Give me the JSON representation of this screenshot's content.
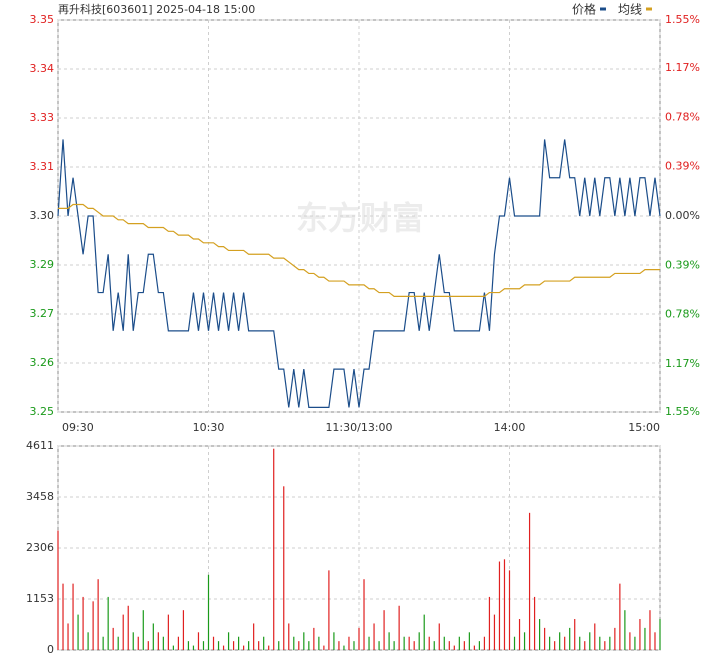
{
  "chart_data": [
    {
      "type": "line",
      "title": "再升科技[603601] 2025-04-18 15:00",
      "watermark": "东方财富",
      "legend": "top-right",
      "grid": true,
      "up_color": "#e02020",
      "down_color": "#1a9a1a",
      "flat_color": "#333333",
      "x": [
        0,
        2,
        4,
        6,
        8,
        10,
        12,
        14,
        16,
        18,
        20,
        22,
        24,
        26,
        28,
        30,
        32,
        34,
        36,
        38,
        40,
        42,
        44,
        46,
        48,
        50,
        52,
        54,
        56,
        58,
        60,
        62,
        64,
        66,
        68,
        70,
        72,
        74,
        76,
        78,
        80,
        82,
        84,
        86,
        88,
        90,
        92,
        94,
        96,
        98,
        100,
        102,
        104,
        106,
        108,
        110,
        112,
        114,
        116,
        118,
        120,
        122,
        124,
        126,
        128,
        130,
        132,
        134,
        136,
        138,
        140,
        142,
        144,
        146,
        148,
        150,
        152,
        154,
        156,
        158,
        160,
        162,
        164,
        166,
        168,
        170,
        172,
        174,
        176,
        178,
        180,
        182,
        184,
        186,
        188,
        190,
        192,
        194,
        196,
        198,
        200,
        202,
        204,
        206,
        208,
        210,
        212,
        214,
        216,
        218,
        220,
        222,
        224,
        226,
        228,
        230,
        232,
        234,
        236,
        238,
        240
      ],
      "xlim": [
        0,
        240
      ],
      "xticks": [
        {
          "value": 0,
          "label": "09:30"
        },
        {
          "value": 60,
          "label": "10:30"
        },
        {
          "value": 120,
          "label": "11:30/13:00"
        },
        {
          "value": 180,
          "label": "14:00"
        },
        {
          "value": 240,
          "label": "15:00"
        }
      ],
      "ylim": [
        3.2488,
        3.3512
      ],
      "yticks": [
        {
          "value": 3.3512,
          "label": "3.35"
        },
        {
          "value": 3.3384,
          "label": "3.34"
        },
        {
          "value": 3.3256,
          "label": "3.33"
        },
        {
          "value": 3.3128,
          "label": "3.31"
        },
        {
          "value": 3.3,
          "label": "3.30"
        },
        {
          "value": 3.2872,
          "label": "3.29"
        },
        {
          "value": 3.2744,
          "label": "3.27"
        },
        {
          "value": 3.2616,
          "label": "3.26"
        },
        {
          "value": 3.2488,
          "label": "3.25"
        }
      ],
      "y2lim": [
        -1.55,
        1.55
      ],
      "y2ticks": [
        {
          "value": 1.55,
          "label": "1.55%"
        },
        {
          "value": 1.17,
          "label": "1.17%"
        },
        {
          "value": 0.78,
          "label": "0.78%"
        },
        {
          "value": 0.39,
          "label": "0.39%"
        },
        {
          "value": 0,
          "label": "0.00%"
        },
        {
          "value": -0.39,
          "label": "0.39%"
        },
        {
          "value": -0.78,
          "label": "0.78%"
        },
        {
          "value": -1.17,
          "label": "1.17%"
        },
        {
          "value": -1.55,
          "label": "1.55%"
        }
      ],
      "series": [
        {
          "name": "价格",
          "color": "#1b4d8a",
          "values": [
            3.3,
            3.32,
            3.3,
            3.31,
            3.3,
            3.29,
            3.3,
            3.3,
            3.28,
            3.28,
            3.29,
            3.27,
            3.28,
            3.27,
            3.29,
            3.27,
            3.28,
            3.28,
            3.29,
            3.29,
            3.28,
            3.28,
            3.27,
            3.27,
            3.27,
            3.27,
            3.27,
            3.28,
            3.27,
            3.28,
            3.27,
            3.28,
            3.27,
            3.28,
            3.27,
            3.28,
            3.27,
            3.28,
            3.27,
            3.27,
            3.27,
            3.27,
            3.27,
            3.27,
            3.26,
            3.26,
            3.25,
            3.26,
            3.25,
            3.26,
            3.25,
            3.25,
            3.25,
            3.25,
            3.25,
            3.26,
            3.26,
            3.26,
            3.25,
            3.26,
            3.25,
            3.26,
            3.26,
            3.27,
            3.27,
            3.27,
            3.27,
            3.27,
            3.27,
            3.27,
            3.28,
            3.28,
            3.27,
            3.28,
            3.27,
            3.28,
            3.29,
            3.28,
            3.28,
            3.27,
            3.27,
            3.27,
            3.27,
            3.27,
            3.27,
            3.28,
            3.27,
            3.29,
            3.3,
            3.3,
            3.31,
            3.3,
            3.3,
            3.3,
            3.3,
            3.3,
            3.3,
            3.32,
            3.31,
            3.31,
            3.31,
            3.32,
            3.31,
            3.31,
            3.3,
            3.31,
            3.3,
            3.31,
            3.3,
            3.31,
            3.31,
            3.3,
            3.31,
            3.3,
            3.31,
            3.3,
            3.31,
            3.31,
            3.3,
            3.31,
            3.3
          ]
        },
        {
          "name": "均线",
          "color": "#d4a020",
          "values": [
            3.302,
            3.302,
            3.302,
            3.303,
            3.303,
            3.303,
            3.302,
            3.302,
            3.301,
            3.3,
            3.3,
            3.3,
            3.299,
            3.299,
            3.298,
            3.298,
            3.298,
            3.298,
            3.297,
            3.297,
            3.297,
            3.297,
            3.296,
            3.296,
            3.295,
            3.295,
            3.295,
            3.294,
            3.294,
            3.293,
            3.293,
            3.293,
            3.292,
            3.292,
            3.291,
            3.291,
            3.291,
            3.291,
            3.29,
            3.29,
            3.29,
            3.29,
            3.29,
            3.289,
            3.289,
            3.289,
            3.288,
            3.287,
            3.286,
            3.286,
            3.285,
            3.285,
            3.284,
            3.284,
            3.283,
            3.283,
            3.283,
            3.283,
            3.282,
            3.282,
            3.282,
            3.282,
            3.281,
            3.281,
            3.28,
            3.28,
            3.28,
            3.279,
            3.279,
            3.279,
            3.279,
            3.279,
            3.279,
            3.279,
            3.279,
            3.279,
            3.279,
            3.279,
            3.279,
            3.279,
            3.279,
            3.279,
            3.279,
            3.279,
            3.279,
            3.279,
            3.28,
            3.28,
            3.28,
            3.281,
            3.281,
            3.281,
            3.281,
            3.282,
            3.282,
            3.282,
            3.282,
            3.283,
            3.283,
            3.283,
            3.283,
            3.283,
            3.283,
            3.284,
            3.284,
            3.284,
            3.284,
            3.284,
            3.284,
            3.284,
            3.284,
            3.285,
            3.285,
            3.285,
            3.285,
            3.285,
            3.285,
            3.286,
            3.286,
            3.286,
            3.286
          ]
        }
      ]
    },
    {
      "type": "bar",
      "grid": true,
      "x": [
        0,
        2,
        4,
        6,
        8,
        10,
        12,
        14,
        16,
        18,
        20,
        22,
        24,
        26,
        28,
        30,
        32,
        34,
        36,
        38,
        40,
        42,
        44,
        46,
        48,
        50,
        52,
        54,
        56,
        58,
        60,
        62,
        64,
        66,
        68,
        70,
        72,
        74,
        76,
        78,
        80,
        82,
        84,
        86,
        88,
        90,
        92,
        94,
        96,
        98,
        100,
        102,
        104,
        106,
        108,
        110,
        112,
        114,
        116,
        118,
        120,
        122,
        124,
        126,
        128,
        130,
        132,
        134,
        136,
        138,
        140,
        142,
        144,
        146,
        148,
        150,
        152,
        154,
        156,
        158,
        160,
        162,
        164,
        166,
        168,
        170,
        172,
        174,
        176,
        178,
        180,
        182,
        184,
        186,
        188,
        190,
        192,
        194,
        196,
        198,
        200,
        202,
        204,
        206,
        208,
        210,
        212,
        214,
        216,
        218,
        220,
        222,
        224,
        226,
        228,
        230,
        232,
        234,
        236,
        238,
        240
      ],
      "xlim": [
        0,
        240
      ],
      "ylim": [
        0,
        4611
      ],
      "yticks": [
        4611,
        3458,
        2306,
        1153,
        0
      ],
      "values": [
        2700,
        1500,
        600,
        1500,
        800,
        1200,
        400,
        1100,
        1600,
        300,
        1200,
        500,
        300,
        800,
        1000,
        400,
        300,
        900,
        200,
        600,
        400,
        300,
        800,
        100,
        300,
        900,
        200,
        100,
        400,
        200,
        1700,
        300,
        200,
        100,
        400,
        200,
        300,
        100,
        200,
        600,
        200,
        300,
        100,
        4550,
        200,
        3700,
        600,
        300,
        200,
        400,
        200,
        500,
        300,
        100,
        1800,
        400,
        200,
        100,
        300,
        200,
        500,
        1600,
        300,
        600,
        200,
        900,
        400,
        200,
        1000,
        300,
        300,
        200,
        400,
        800,
        300,
        200,
        600,
        300,
        200,
        100,
        300,
        200,
        400,
        100,
        200,
        300,
        1200,
        800,
        2000,
        2050,
        1800,
        300,
        700,
        400,
        3100,
        1200,
        700,
        500,
        300,
        200,
        400,
        300,
        500,
        700,
        300,
        200,
        400,
        600,
        300,
        200,
        300,
        500,
        1500,
        900,
        400,
        300,
        700,
        500,
        900,
        400,
        700
      ],
      "colors": [
        "#e02020",
        "#e02020",
        "#e02020",
        "#e02020",
        "#1a9a1a",
        "#e02020",
        "#1a9a1a",
        "#e02020",
        "#e02020",
        "#1a9a1a",
        "#1a9a1a",
        "#e02020",
        "#1a9a1a",
        "#e02020",
        "#e02020",
        "#1a9a1a",
        "#e02020",
        "#1a9a1a",
        "#e02020",
        "#1a9a1a",
        "#e02020",
        "#1a9a1a",
        "#e02020",
        "#1a9a1a",
        "#e02020",
        "#e02020",
        "#1a9a1a",
        "#1a9a1a",
        "#e02020",
        "#1a9a1a",
        "#1a9a1a",
        "#e02020",
        "#1a9a1a",
        "#e02020",
        "#1a9a1a",
        "#e02020",
        "#1a9a1a",
        "#e02020",
        "#1a9a1a",
        "#e02020",
        "#e02020",
        "#1a9a1a",
        "#e02020",
        "#e02020",
        "#1a9a1a",
        "#e02020",
        "#e02020",
        "#1a9a1a",
        "#e02020",
        "#1a9a1a",
        "#1a9a1a",
        "#e02020",
        "#1a9a1a",
        "#e02020",
        "#e02020",
        "#1a9a1a",
        "#e02020",
        "#1a9a1a",
        "#e02020",
        "#1a9a1a",
        "#e02020",
        "#e02020",
        "#1a9a1a",
        "#e02020",
        "#1a9a1a",
        "#e02020",
        "#1a9a1a",
        "#1a9a1a",
        "#e02020",
        "#1a9a1a",
        "#e02020",
        "#e02020",
        "#1a9a1a",
        "#1a9a1a",
        "#e02020",
        "#1a9a1a",
        "#e02020",
        "#1a9a1a",
        "#e02020",
        "#e02020",
        "#1a9a1a",
        "#e02020",
        "#1a9a1a",
        "#e02020",
        "#1a9a1a",
        "#e02020",
        "#e02020",
        "#e02020",
        "#e02020",
        "#e02020",
        "#e02020",
        "#1a9a1a",
        "#e02020",
        "#1a9a1a",
        "#e02020",
        "#e02020",
        "#1a9a1a",
        "#e02020",
        "#1a9a1a",
        "#e02020",
        "#1a9a1a",
        "#e02020",
        "#1a9a1a",
        "#e02020",
        "#1a9a1a",
        "#e02020",
        "#1a9a1a",
        "#e02020",
        "#1a9a1a",
        "#e02020",
        "#1a9a1a",
        "#e02020",
        "#e02020",
        "#1a9a1a",
        "#e02020",
        "#1a9a1a",
        "#e02020",
        "#1a9a1a",
        "#e02020",
        "#e02020",
        "#1a9a1a"
      ]
    }
  ]
}
